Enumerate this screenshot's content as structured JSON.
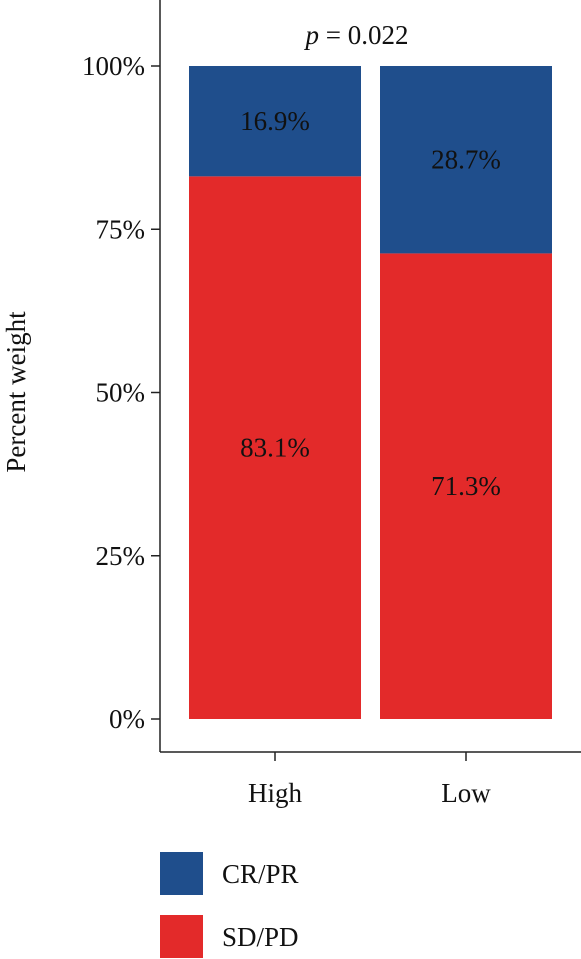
{
  "chart_data": {
    "type": "bar",
    "stacked": true,
    "percent": true,
    "categories": [
      "High",
      "Low"
    ],
    "series": [
      {
        "name": "SD/PD",
        "values": [
          83.1,
          71.3
        ],
        "labels": [
          "83.1%",
          "71.3%"
        ],
        "color": "#e32a2a"
      },
      {
        "name": "CR/PR",
        "values": [
          16.9,
          28.7
        ],
        "labels": [
          "16.9%",
          "28.7%"
        ],
        "color": "#1f4e8c"
      }
    ],
    "annotation": {
      "italic": "p",
      "rest": " = 0.022"
    },
    "ylabel": "Percent weight",
    "ylim": [
      0,
      100
    ],
    "yticks": [
      0,
      25,
      50,
      75,
      100
    ],
    "ytick_labels": [
      "0%",
      "25%",
      "50%",
      "75%",
      "100%"
    ],
    "grid": false,
    "legend": {
      "position": "bottom",
      "entries": [
        {
          "label": "CR/PR",
          "color": "#1f4e8c"
        },
        {
          "label": "SD/PD",
          "color": "#e32a2a"
        }
      ]
    }
  }
}
